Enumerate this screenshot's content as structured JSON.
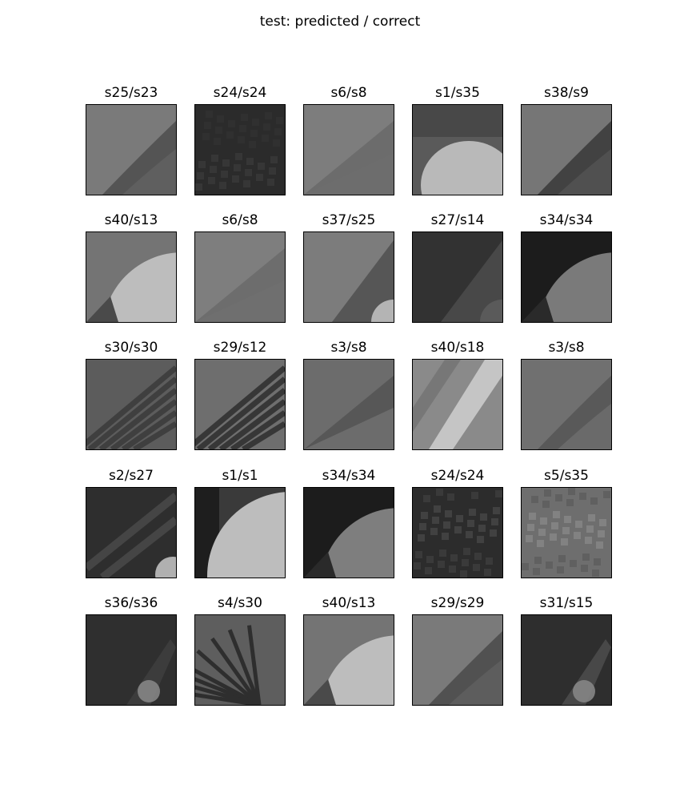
{
  "title": "test: predicted / correct",
  "chart_data": {
    "type": "image_grid",
    "title": "test: predicted / correct",
    "rows": 5,
    "cols": 5,
    "panels": [
      {
        "label": "s25/s23",
        "predicted": "s25",
        "correct": "s23",
        "base": "#7a7a7a",
        "accent": "#4e4e4e",
        "light": "#6a6a6a",
        "pattern": "curve-tr"
      },
      {
        "label": "s24/s24",
        "predicted": "s24",
        "correct": "s24",
        "base": "#2b2b2b",
        "accent": "#3c3c3c",
        "light": "#333333",
        "pattern": "noise"
      },
      {
        "label": "s6/s8",
        "predicted": "s6",
        "correct": "s8",
        "base": "#7d7d7d",
        "accent": "#606060",
        "light": "#6e6e6e",
        "pattern": "diag"
      },
      {
        "label": "s1/s35",
        "predicted": "s1",
        "correct": "s35",
        "base": "#5a5a5a",
        "accent": "#444444",
        "light": "#b9b9b9",
        "pattern": "blob-bottom"
      },
      {
        "label": "s38/s9",
        "predicted": "s38",
        "correct": "s9",
        "base": "#767676",
        "accent": "#3a3a3a",
        "light": "#5e5e5e",
        "pattern": "curve-tr"
      },
      {
        "label": "s40/s13",
        "predicted": "s40",
        "correct": "s13",
        "base": "#747474",
        "accent": "#4a4a4a",
        "light": "#bdbdbd",
        "pattern": "circle-br"
      },
      {
        "label": "s6/s8",
        "predicted": "s6",
        "correct": "s8",
        "base": "#7e7e7e",
        "accent": "#636363",
        "light": "#727272",
        "pattern": "diag"
      },
      {
        "label": "s37/s25",
        "predicted": "s37",
        "correct": "s25",
        "base": "#7c7c7c",
        "accent": "#525252",
        "light": "#b4b4b4",
        "pattern": "corner-br"
      },
      {
        "label": "s27/s14",
        "predicted": "s27",
        "correct": "s14",
        "base": "#323232",
        "accent": "#4a4a4a",
        "light": "#5a5a5a",
        "pattern": "corner-br"
      },
      {
        "label": "s34/s34",
        "predicted": "s34",
        "correct": "s34",
        "base": "#1c1c1c",
        "accent": "#2a2a2a",
        "light": "#7a7a7a",
        "pattern": "circle-br"
      },
      {
        "label": "s30/s30",
        "predicted": "s30",
        "correct": "s30",
        "base": "#5c5c5c",
        "accent": "#3a3a3a",
        "light": "#6a6a6a",
        "pattern": "stripes"
      },
      {
        "label": "s29/s12",
        "predicted": "s29",
        "correct": "s12",
        "base": "#6e6e6e",
        "accent": "#2e2e2e",
        "light": "#8a8a8a",
        "pattern": "stripes"
      },
      {
        "label": "s3/s8",
        "predicted": "s3",
        "correct": "s8",
        "base": "#6c6c6c",
        "accent": "#4a4a4a",
        "light": "#7a7a7a",
        "pattern": "diag"
      },
      {
        "label": "s40/s18",
        "predicted": "s40",
        "correct": "s18",
        "base": "#8a8a8a",
        "accent": "#6a6a6a",
        "light": "#cfcfcf",
        "pattern": "bright-streak"
      },
      {
        "label": "s3/s8",
        "predicted": "s3",
        "correct": "s8",
        "base": "#707070",
        "accent": "#555555",
        "light": "#7c7c7c",
        "pattern": "curve-tr"
      },
      {
        "label": "s2/s27",
        "predicted": "s2",
        "correct": "s27",
        "base": "#2e2e2e",
        "accent": "#454545",
        "light": "#b0b0b0",
        "pattern": "stripes-light"
      },
      {
        "label": "s1/s1",
        "predicted": "s1",
        "correct": "s1",
        "base": "#3a3a3a",
        "accent": "#555555",
        "light": "#bdbdbd",
        "pattern": "circle-br-big"
      },
      {
        "label": "s34/s34",
        "predicted": "s34",
        "correct": "s34",
        "base": "#1c1c1c",
        "accent": "#2a2a2a",
        "light": "#7e7e7e",
        "pattern": "circle-br"
      },
      {
        "label": "s24/s24",
        "predicted": "s24",
        "correct": "s24",
        "base": "#2c2c2c",
        "accent": "#404040",
        "light": "#4a4a4a",
        "pattern": "noise"
      },
      {
        "label": "s5/s35",
        "predicted": "s5",
        "correct": "s35",
        "base": "#6e6e6e",
        "accent": "#5a5a5a",
        "light": "#8a8a8a",
        "pattern": "noise-light"
      },
      {
        "label": "s36/s36",
        "predicted": "s36",
        "correct": "s36",
        "base": "#2f2f2f",
        "accent": "#3c3c3c",
        "light": "#8a8a8a",
        "pattern": "spot-bottom"
      },
      {
        "label": "s4/s30",
        "predicted": "s4",
        "correct": "s30",
        "base": "#5e5e5e",
        "accent": "#2e2e2e",
        "light": "#727272",
        "pattern": "fan"
      },
      {
        "label": "s40/s13",
        "predicted": "s40",
        "correct": "s13",
        "base": "#747474",
        "accent": "#4a4a4a",
        "light": "#bdbdbd",
        "pattern": "circle-br"
      },
      {
        "label": "s29/s29",
        "predicted": "s29",
        "correct": "s29",
        "base": "#7a7a7a",
        "accent": "#4a4a4a",
        "light": "#6a6a6a",
        "pattern": "curve-tr"
      },
      {
        "label": "s31/s15",
        "predicted": "s31",
        "correct": "s15",
        "base": "#2e2e2e",
        "accent": "#484848",
        "light": "#8a8a8a",
        "pattern": "spot-bottom"
      }
    ]
  }
}
